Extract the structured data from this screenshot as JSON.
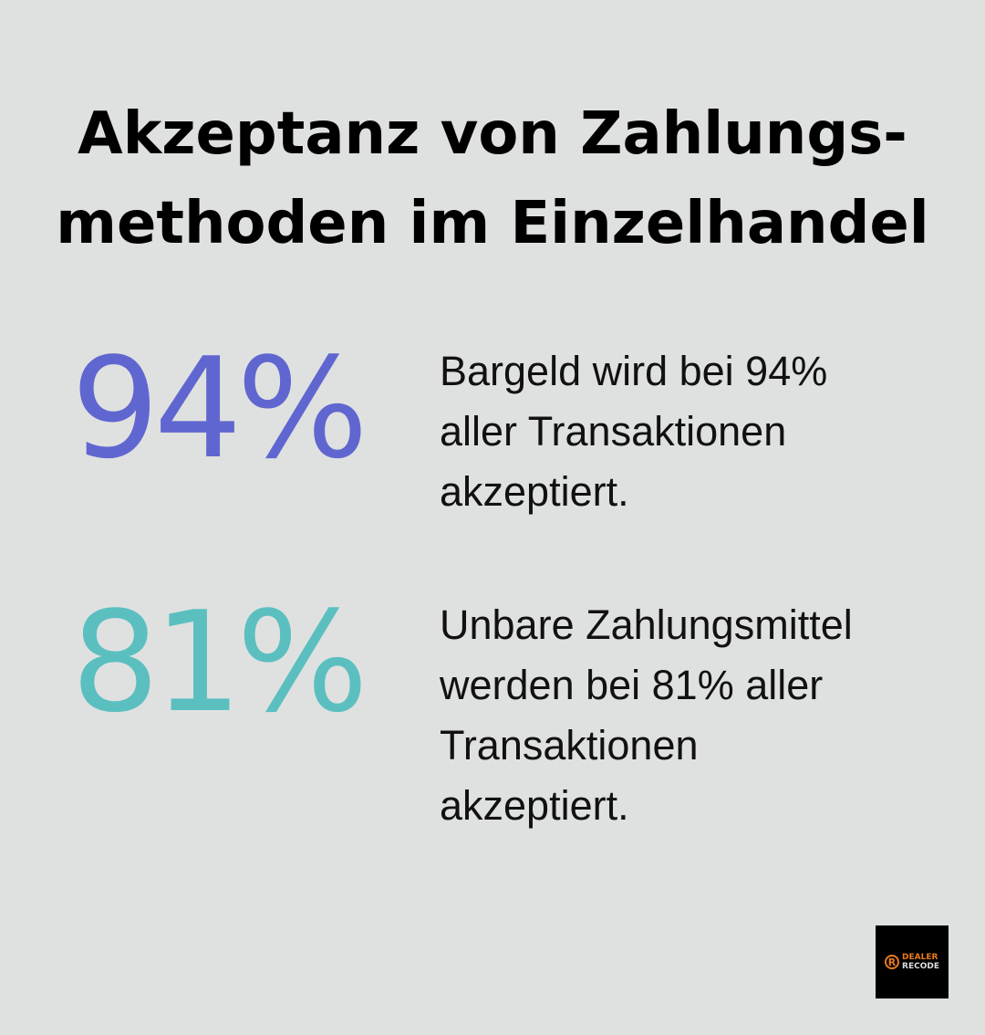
{
  "title": {
    "line1": "Akzeptanz von Zahlungs-",
    "line2": "methoden im Einzelhandel"
  },
  "stats": [
    {
      "value": "94%",
      "color": "#6066d0",
      "description": "Bargeld wird bei 94% aller Transaktionen akzeptiert."
    },
    {
      "value": "81%",
      "color": "#5bbfc0",
      "description": "Unbare Zahlungsmittel werden bei 81% aller Transaktionen akzeptiert."
    }
  ],
  "logo": {
    "mark": "R",
    "line1": "DEALER",
    "line2": "RECODE",
    "accent": "#e87a1e"
  }
}
